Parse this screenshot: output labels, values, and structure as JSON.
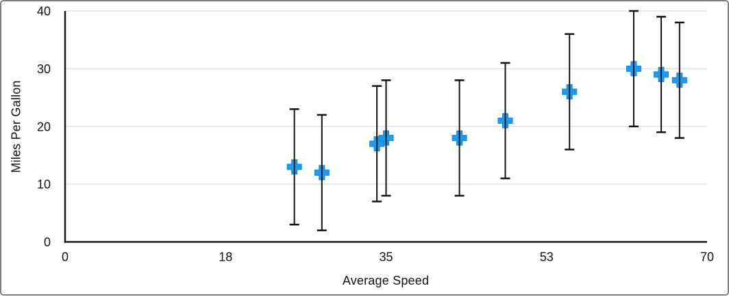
{
  "chart_data": {
    "type": "scatter",
    "title": "",
    "xlabel": "Average Speed",
    "ylabel": "Miles Per Gallon",
    "xlim": [
      0,
      70
    ],
    "ylim": [
      0,
      40
    ],
    "grid": "horizontal",
    "legend_position": "none",
    "x_ticks": [
      {
        "pos": 0,
        "label": "0"
      },
      {
        "pos": 17.5,
        "label": "18"
      },
      {
        "pos": 35,
        "label": "35"
      },
      {
        "pos": 52.5,
        "label": "53"
      },
      {
        "pos": 70,
        "label": "70"
      }
    ],
    "y_ticks": [
      {
        "pos": 0,
        "label": "0"
      },
      {
        "pos": 10,
        "label": "10"
      },
      {
        "pos": 20,
        "label": "20"
      },
      {
        "pos": 30,
        "label": "30"
      },
      {
        "pos": 40,
        "label": "40"
      }
    ],
    "marker": {
      "shape": "plus",
      "size": 21,
      "arm_thickness": 8
    },
    "error_bars": {
      "axis": "y",
      "symmetric": true,
      "value": 10,
      "cap_width": 14
    },
    "series": [
      {
        "name": "Miles Per Gallon",
        "points": [
          {
            "x": 25,
            "y": 13,
            "y_low": 3,
            "y_high": 23
          },
          {
            "x": 28,
            "y": 12,
            "y_low": 2,
            "y_high": 22
          },
          {
            "x": 34,
            "y": 17,
            "y_low": 7,
            "y_high": 27
          },
          {
            "x": 35,
            "y": 18,
            "y_low": 8,
            "y_high": 28
          },
          {
            "x": 43,
            "y": 18,
            "y_low": 8,
            "y_high": 28
          },
          {
            "x": 48,
            "y": 21,
            "y_low": 11,
            "y_high": 31
          },
          {
            "x": 55,
            "y": 26,
            "y_low": 16,
            "y_high": 36
          },
          {
            "x": 62,
            "y": 30,
            "y_low": 20,
            "y_high": 40
          },
          {
            "x": 65,
            "y": 29,
            "y_low": 19,
            "y_high": 39
          },
          {
            "x": 67,
            "y": 28,
            "y_low": 18,
            "y_high": 38
          }
        ]
      }
    ],
    "colors": {
      "marker_fill": "#1d9bf4",
      "marker_stroke": "#0e86dc",
      "error_bar": "#111111",
      "axis": "#1a1a1a",
      "gridline": "#dddddd",
      "text": "#111111",
      "frame_border": "#7f7f7f",
      "background": "#ffffff"
    }
  }
}
